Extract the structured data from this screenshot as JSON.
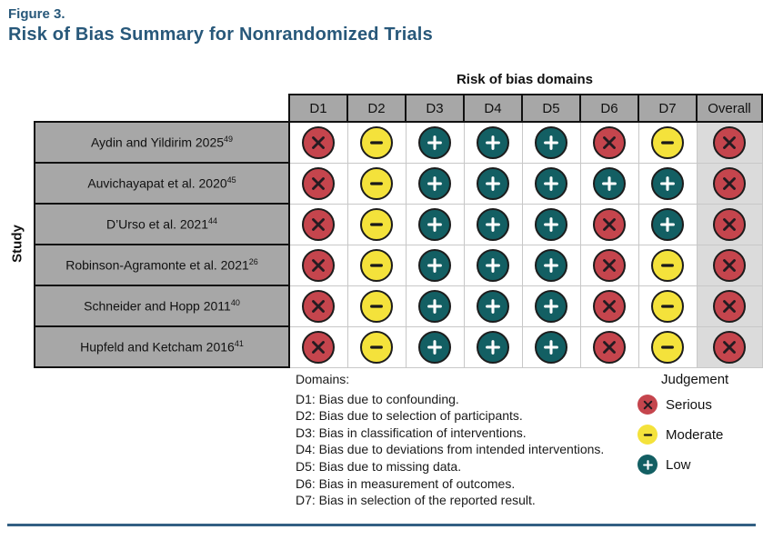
{
  "figure": {
    "label": "Figure 3.",
    "title": "Risk of Bias Summary for Nonrandomized Trials"
  },
  "table": {
    "axis_title": "Risk of bias domains",
    "y_axis_title": "Study"
  },
  "chart_data": {
    "type": "heatmap",
    "title": "Risk of Bias Summary for Nonrandomized Trials",
    "x_axis_title": "Risk of bias domains",
    "y_axis_title": "Study",
    "columns": [
      "D1",
      "D2",
      "D3",
      "D4",
      "D5",
      "D6",
      "D7",
      "Overall"
    ],
    "judgement_symbols": {
      "serious": "x",
      "moderate": "-",
      "low": "+"
    },
    "rows": [
      {
        "study": "Aydin and Yildirim 2025",
        "ref": "49",
        "values": [
          "serious",
          "moderate",
          "low",
          "low",
          "low",
          "serious",
          "moderate",
          "serious"
        ]
      },
      {
        "study": "Auvichayapat et al. 2020",
        "ref": "45",
        "values": [
          "serious",
          "moderate",
          "low",
          "low",
          "low",
          "low",
          "low",
          "serious"
        ]
      },
      {
        "study": "D’Urso et al. 2021",
        "ref": "44",
        "values": [
          "serious",
          "moderate",
          "low",
          "low",
          "low",
          "serious",
          "low",
          "serious"
        ]
      },
      {
        "study": "Robinson-Agramonte et al. 2021",
        "ref": "26",
        "values": [
          "serious",
          "moderate",
          "low",
          "low",
          "low",
          "serious",
          "moderate",
          "serious"
        ]
      },
      {
        "study": "Schneider and Hopp 2011",
        "ref": "40",
        "values": [
          "serious",
          "moderate",
          "low",
          "low",
          "low",
          "serious",
          "moderate",
          "serious"
        ]
      },
      {
        "study": "Hupfeld and Ketcham 2016",
        "ref": "41",
        "values": [
          "serious",
          "moderate",
          "low",
          "low",
          "low",
          "serious",
          "moderate",
          "serious"
        ]
      }
    ]
  },
  "domains": {
    "title": "Domains:",
    "items": [
      "D1: Bias due to confounding.",
      "D2: Bias due to selection of participants.",
      "D3: Bias in classification of interventions.",
      "D4: Bias due to deviations from intended interventions.",
      "D5: Bias due to missing data.",
      "D6: Bias in measurement of outcomes.",
      "D7: Bias in selection of the reported result."
    ]
  },
  "legend": {
    "title": "Judgement",
    "items": [
      {
        "judgement": "serious",
        "label": "Serious"
      },
      {
        "judgement": "moderate",
        "label": "Moderate"
      },
      {
        "judgement": "low",
        "label": "Low"
      }
    ]
  },
  "colors": {
    "serious": "#C5454D",
    "moderate": "#F4E23B",
    "low": "#135F63",
    "title": "#28587A",
    "header_cell": "#A7A7A7",
    "overall_bg": "#DBDBDB",
    "rule": "#336083"
  }
}
